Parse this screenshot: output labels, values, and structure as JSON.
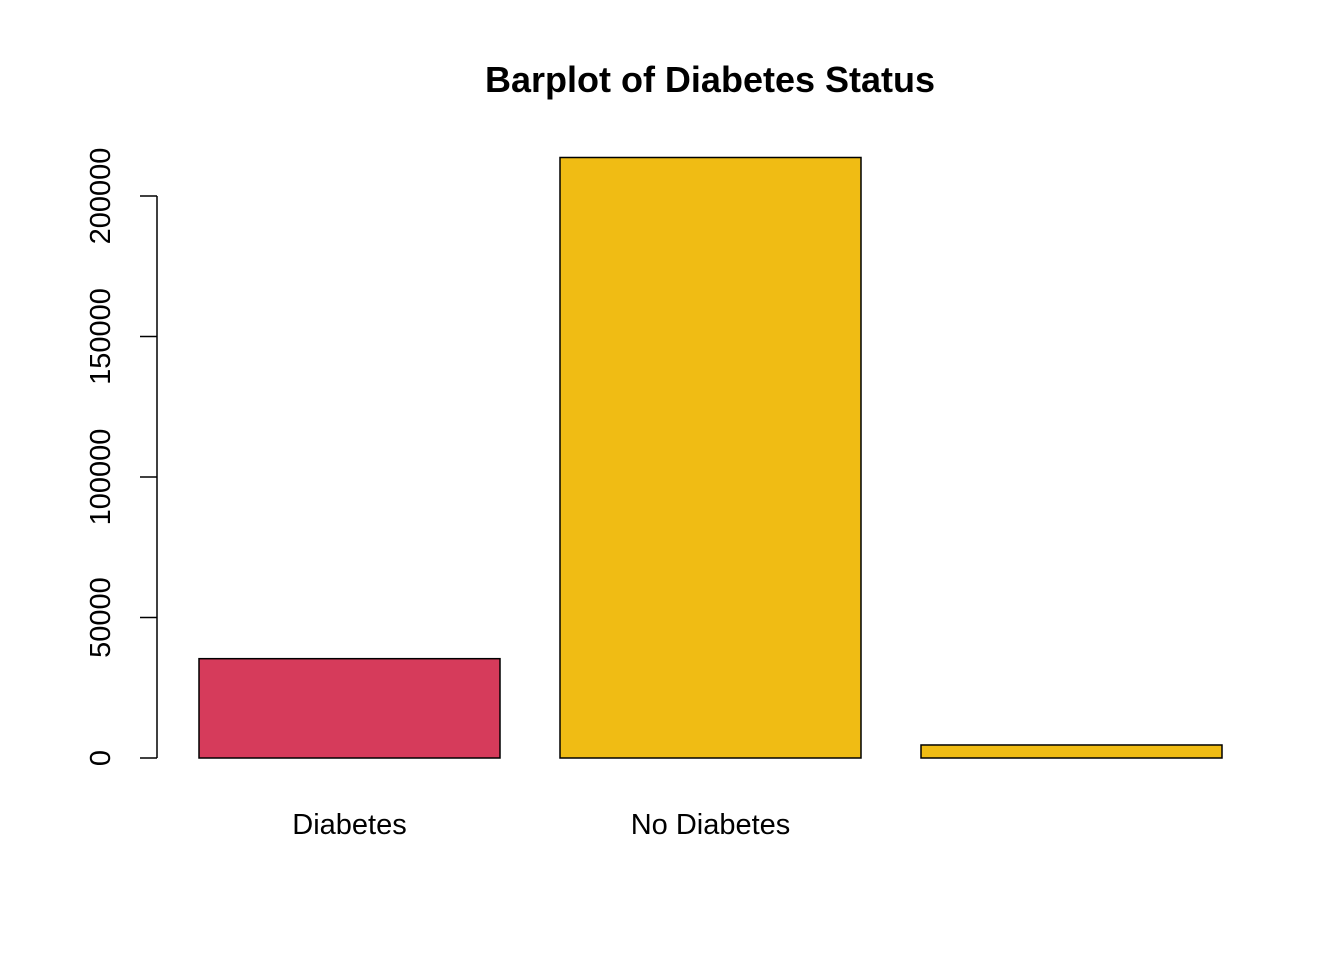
{
  "chart_data": {
    "type": "bar",
    "title": "Barplot of Diabetes Status",
    "xlabel": "",
    "ylabel": "",
    "categories": [
      "Diabetes",
      "No Diabetes",
      ""
    ],
    "values": [
      35346,
      213703,
      4631
    ],
    "colors": [
      "#D63B5B",
      "#F0BC14",
      "#F0BC14"
    ],
    "yticks": [
      0,
      50000,
      100000,
      150000,
      200000
    ],
    "ytick_labels": [
      "0",
      "50000",
      "100000",
      "150000",
      "200000"
    ],
    "ylim": [
      0,
      224500
    ],
    "grid": false,
    "legend": "none"
  }
}
